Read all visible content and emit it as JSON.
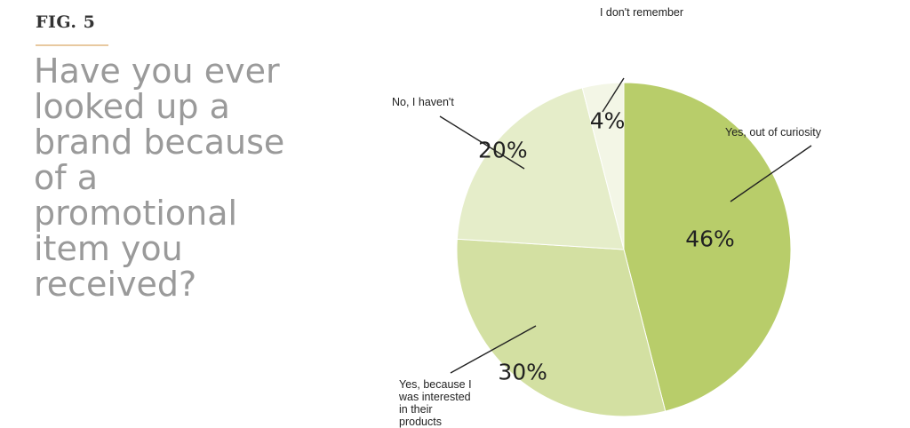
{
  "figure": {
    "label": "FIG. 5",
    "question": "Have you ever looked up a brand because of a promotional item you received?"
  },
  "chart_data": {
    "type": "pie",
    "slices": [
      {
        "label": "Yes, out of curiosity",
        "value": 46,
        "display": "46%",
        "color": "#b8cd6a"
      },
      {
        "label": "Yes, because I was interested in their products",
        "value": 30,
        "display": "30%",
        "color": "#d3e0a2"
      },
      {
        "label": "No, I haven't",
        "value": 20,
        "display": "20%",
        "color": "#e5edc9"
      },
      {
        "label": "I don't remember",
        "value": 4,
        "display": "4%",
        "color": "#f3f6e6"
      }
    ]
  }
}
